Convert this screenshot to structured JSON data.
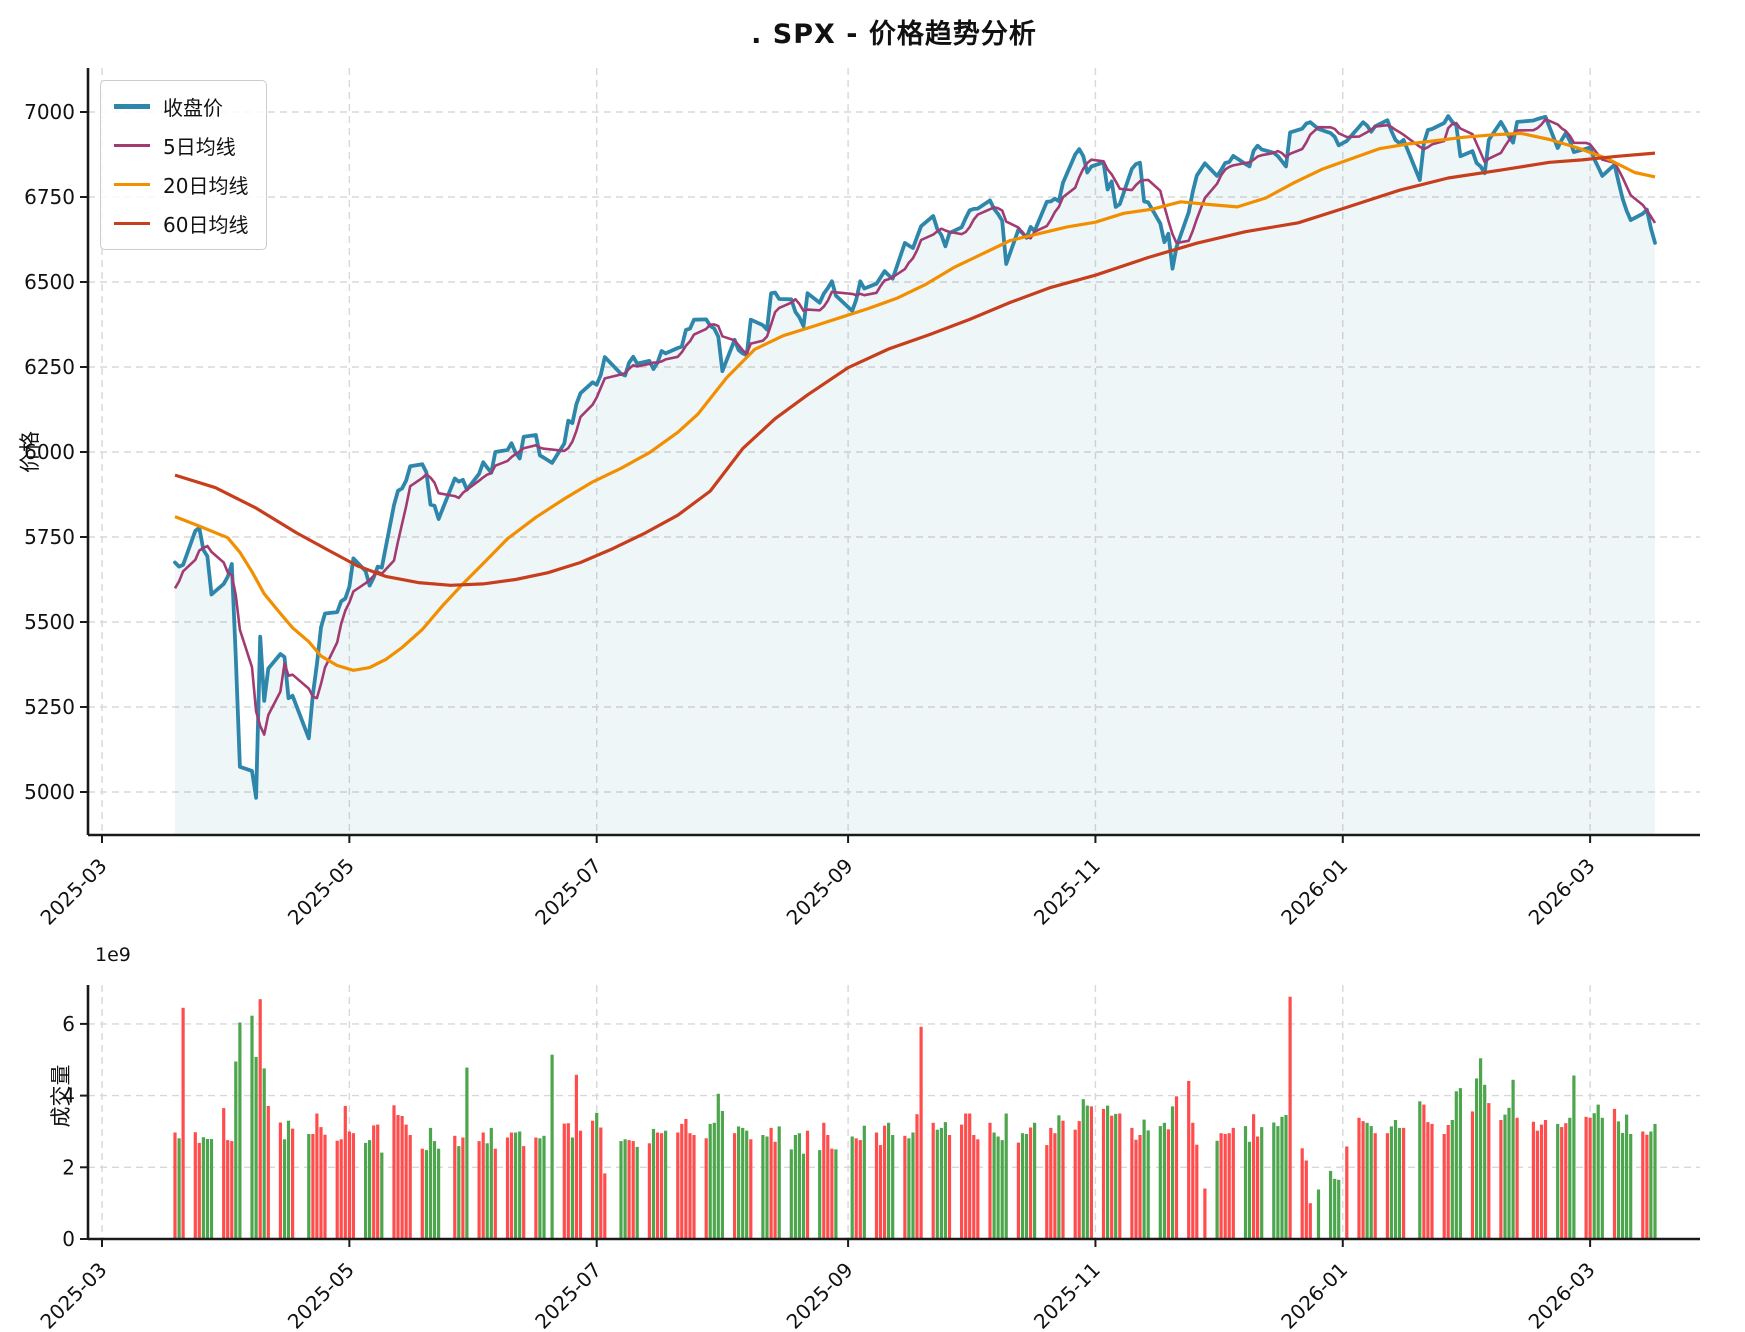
{
  "title": ". SPX - 价格趋势分析",
  "chart_data": [
    {
      "type": "line",
      "panel": "price",
      "title": ". SPX - 价格趋势分析",
      "ylabel": "价格",
      "yticks": [
        5000,
        5250,
        5500,
        5750,
        6000,
        6250,
        6500,
        6750,
        7000
      ],
      "ylim": [
        4874,
        7129
      ],
      "xticks": [
        {
          "label": "2025-03",
          "t": -18
        },
        {
          "label": "2025-05",
          "t": 43
        },
        {
          "label": "2025-07",
          "t": 104
        },
        {
          "label": "2025-09",
          "t": 166
        },
        {
          "label": "2025-11",
          "t": 227
        },
        {
          "label": "2026-01",
          "t": 288
        },
        {
          "label": "2026-03",
          "t": 349
        }
      ],
      "x_axis_note": "t = calendar days since 2025-03-19; trading days only (weekend/holiday gaps)",
      "grid": true,
      "legend_position": "upper-left",
      "trading_weeks": [
        "234",
        "01234",
        "01234",
        "01234",
        "0123",
        "01234",
        "01234",
        "01234",
        "01234",
        "01234",
        "1234",
        "01234",
        "01234",
        "0124",
        "01234",
        "0123",
        "01234",
        "01234",
        "01234",
        "01234",
        "01234",
        "01234",
        "01234",
        "01234",
        "1234",
        "01234",
        "01234",
        "01234",
        "01234",
        "01234",
        "01234",
        "01234",
        "01234",
        "01234",
        "01234",
        "01234",
        "0124",
        "01234",
        "01234",
        "01234",
        "0124",
        "0124",
        "01234",
        "01234",
        "1234",
        "01234",
        "01234",
        "01234",
        "1234",
        "01234",
        "01234",
        "01234",
        "0123"
      ],
      "series": [
        {
          "name": "收盘价",
          "color": "#2E86AB",
          "line_width": 3.8,
          "fill_below": true,
          "fill_opacity": 0.08,
          "values": [
            5675,
            5663,
            5668,
            5768,
            5777,
            5712,
            5693,
            5581,
            5612,
            5633,
            5671,
            5396,
            5074,
            5062,
            4983,
            5457,
            5268,
            5363,
            5406,
            5397,
            5276,
            5283,
            5158,
            5288,
            5376,
            5484,
            5525,
            5529,
            5561,
            5569,
            5604,
            5687,
            5650,
            5607,
            5631,
            5663,
            5660,
            5844,
            5886,
            5893,
            5916,
            5958,
            5964,
            5940,
            5845,
            5842,
            5803,
            5922,
            5913,
            5918,
            5889,
            5936,
            5970,
            5954,
            5939,
            6000,
            6006,
            6026,
            5998,
            5981,
            6045,
            6050,
            5990,
            5983,
            5968,
            6025,
            6092,
            6085,
            6141,
            6173,
            6205,
            6198,
            6227,
            6279,
            6230,
            6225,
            6263,
            6280,
            6260,
            6268,
            6244,
            6263,
            6297,
            6290,
            6306,
            6310,
            6359,
            6363,
            6389,
            6390,
            6371,
            6363,
            6339,
            6238,
            6330,
            6300,
            6290,
            6285,
            6389,
            6373,
            6360,
            6467,
            6469,
            6450,
            6449,
            6412,
            6396,
            6370,
            6467,
            6439,
            6466,
            6482,
            6502,
            6460,
            6415,
            6448,
            6502,
            6481,
            6495,
            6513,
            6532,
            6520,
            6510,
            6615,
            6607,
            6600,
            6632,
            6664,
            6694,
            6656,
            6638,
            6605,
            6644,
            6661,
            6688,
            6711,
            6715,
            6716,
            6740,
            6715,
            6700,
            6680,
            6553,
            6654,
            6644,
            6630,
            6662,
            6650,
            6736,
            6737,
            6745,
            6738,
            6792,
            6875,
            6891,
            6870,
            6822,
            6840,
            6852,
            6772,
            6796,
            6721,
            6729,
            6833,
            6847,
            6851,
            6737,
            6734,
            6672,
            6617,
            6642,
            6539,
            6603,
            6705,
            6766,
            6813,
            6849,
            6812,
            6829,
            6850,
            6853,
            6871,
            6847,
            6840,
            6886,
            6901,
            6890,
            6880,
            6870,
            6855,
            6840,
            6940,
            6951,
            6966,
            6970,
            6950,
            6938,
            6927,
            6902,
            6915,
            6956,
            6970,
            6960,
            6942,
            6958,
            6976,
            6944,
            6918,
            6908,
            6918,
            6800,
            6909,
            6947,
            6950,
            6968,
            6988,
            6971,
            6960,
            6870,
            6885,
            6850,
            6840,
            6820,
            6918,
            6971,
            6950,
            6927,
            6910,
            6971,
            6975,
            6979,
            6983,
            6986,
            6894,
            6918,
            6938,
            6915,
            6882,
            6892,
            6896,
            6862,
            6838,
            6812,
            6845,
            6795,
            6745,
            6710,
            6682,
            6701,
            6713,
            6658,
            6615
          ]
        },
        {
          "name": "5日均线",
          "color": "#A23B72",
          "line_width": 2.6,
          "derived_from": "rolling mean(5) of 收盘价",
          "pre_window_values": [
            5560,
            5521,
            5599,
            5640
          ]
        },
        {
          "name": "20日均线",
          "color": "#F18F01",
          "line_width": 3.2,
          "anchors": [
            [
              0,
              5810
            ],
            [
              6,
              5782
            ],
            [
              13,
              5748
            ],
            [
              16,
              5705
            ],
            [
              19,
              5648
            ],
            [
              22,
              5583
            ],
            [
              26,
              5525
            ],
            [
              29,
              5483
            ],
            [
              33,
              5442
            ],
            [
              36,
              5400
            ],
            [
              40,
              5372
            ],
            [
              44,
              5358
            ],
            [
              48,
              5366
            ],
            [
              52,
              5390
            ],
            [
              56,
              5425
            ],
            [
              61,
              5478
            ],
            [
              66,
              5548
            ],
            [
              71,
              5612
            ],
            [
              76,
              5672
            ],
            [
              82,
              5745
            ],
            [
              89,
              5808
            ],
            [
              96,
              5862
            ],
            [
              103,
              5912
            ],
            [
              110,
              5952
            ],
            [
              117,
              5998
            ],
            [
              124,
              6058
            ],
            [
              129,
              6112
            ],
            [
              136,
              6218
            ],
            [
              143,
              6302
            ],
            [
              150,
              6342
            ],
            [
              157,
              6368
            ],
            [
              164,
              6395
            ],
            [
              171,
              6422
            ],
            [
              178,
              6452
            ],
            [
              185,
              6492
            ],
            [
              192,
              6542
            ],
            [
              199,
              6582
            ],
            [
              206,
              6622
            ],
            [
              213,
              6642
            ],
            [
              220,
              6662
            ],
            [
              227,
              6676
            ],
            [
              234,
              6702
            ],
            [
              241,
              6714
            ],
            [
              248,
              6736
            ],
            [
              255,
              6728
            ],
            [
              262,
              6721
            ],
            [
              269,
              6747
            ],
            [
              276,
              6792
            ],
            [
              283,
              6832
            ],
            [
              290,
              6862
            ],
            [
              297,
              6892
            ],
            [
              304,
              6906
            ],
            [
              311,
              6916
            ],
            [
              318,
              6926
            ],
            [
              325,
              6933
            ],
            [
              332,
              6937
            ],
            [
              339,
              6919
            ],
            [
              346,
              6894
            ],
            [
              353,
              6864
            ],
            [
              360,
              6822
            ],
            [
              365,
              6809
            ]
          ]
        },
        {
          "name": "60日均线",
          "color": "#C73E1D",
          "line_width": 3.2,
          "anchors": [
            [
              0,
              5932
            ],
            [
              10,
              5895
            ],
            [
              20,
              5835
            ],
            [
              30,
              5762
            ],
            [
              38,
              5710
            ],
            [
              45,
              5665
            ],
            [
              52,
              5634
            ],
            [
              60,
              5616
            ],
            [
              68,
              5608
            ],
            [
              76,
              5612
            ],
            [
              84,
              5625
            ],
            [
              92,
              5645
            ],
            [
              100,
              5675
            ],
            [
              108,
              5716
            ],
            [
              116,
              5762
            ],
            [
              124,
              5814
            ],
            [
              132,
              5885
            ],
            [
              140,
              6010
            ],
            [
              148,
              6098
            ],
            [
              156,
              6168
            ],
            [
              166,
              6248
            ],
            [
              176,
              6303
            ],
            [
              186,
              6345
            ],
            [
              196,
              6390
            ],
            [
              206,
              6440
            ],
            [
              216,
              6484
            ],
            [
              227,
              6520
            ],
            [
              240,
              6572
            ],
            [
              252,
              6614
            ],
            [
              264,
              6648
            ],
            [
              277,
              6674
            ],
            [
              288,
              6716
            ],
            [
              302,
              6770
            ],
            [
              314,
              6806
            ],
            [
              327,
              6829
            ],
            [
              339,
              6852
            ],
            [
              347,
              6859
            ],
            [
              356,
              6870
            ],
            [
              365,
              6879
            ]
          ]
        }
      ]
    },
    {
      "type": "bar",
      "panel": "volume",
      "ylabel": "成交量",
      "offset_text": "1e9",
      "yticks": [
        0,
        2,
        4,
        6
      ],
      "ylim": [
        0,
        7.08
      ],
      "unit": 1000000000,
      "up_color": "#ff4d4d",
      "down_color": "#4da64d",
      "color_rule": "red if close >= previous close else green",
      "values": [
        2.97,
        2.81,
        6.45,
        2.98,
        2.68,
        2.84,
        2.79,
        2.79,
        3.65,
        2.76,
        2.73,
        4.95,
        6.04,
        6.23,
        5.08,
        6.69,
        4.76,
        3.71,
        3.25,
        2.78,
        3.3,
        3.08,
        2.93,
        2.93,
        3.5,
        3.12,
        2.91,
        2.74,
        2.78,
        3.71,
        3.0,
        2.95,
        2.68,
        2.76,
        3.17,
        3.19,
        2.41,
        3.73,
        3.46,
        3.43,
        3.19,
        2.9,
        2.52,
        2.48,
        3.1,
        2.73,
        2.52,
        2.88,
        2.59,
        2.83,
        4.78,
        2.73,
        2.97,
        2.67,
        3.1,
        2.52,
        2.83,
        2.97,
        2.97,
        3.0,
        2.59,
        2.83,
        2.81,
        2.88,
        5.14,
        3.22,
        3.23,
        2.83,
        4.58,
        3.02,
        3.3,
        3.52,
        3.11,
        1.83,
        2.73,
        2.78,
        2.76,
        2.73,
        2.57,
        2.67,
        3.07,
        2.97,
        2.95,
        3.02,
        2.97,
        3.21,
        3.35,
        2.95,
        2.9,
        2.81,
        3.21,
        3.24,
        4.05,
        3.57,
        2.95,
        3.14,
        3.1,
        3.02,
        2.78,
        2.9,
        2.86,
        3.1,
        2.71,
        3.14,
        2.5,
        2.9,
        2.95,
        2.38,
        3.02,
        2.48,
        3.24,
        2.9,
        2.52,
        2.5,
        2.86,
        2.81,
        2.76,
        3.16,
        2.97,
        2.62,
        3.16,
        3.24,
        2.9,
        2.88,
        2.81,
        2.97,
        3.48,
        5.92,
        3.24,
        3.05,
        3.1,
        3.26,
        2.9,
        3.19,
        3.5,
        3.5,
        2.9,
        2.78,
        3.24,
        2.97,
        2.86,
        2.76,
        3.5,
        2.69,
        2.95,
        2.93,
        3.11,
        3.24,
        2.62,
        3.1,
        2.95,
        3.45,
        3.3,
        3.05,
        3.29,
        3.9,
        3.72,
        3.7,
        3.63,
        3.72,
        3.44,
        3.49,
        3.5,
        3.1,
        2.77,
        2.9,
        3.33,
        3.03,
        3.15,
        3.24,
        3.06,
        3.7,
        3.98,
        4.41,
        3.24,
        2.63,
        1.41,
        2.74,
        2.95,
        2.93,
        2.95,
        3.1,
        3.15,
        2.71,
        3.48,
        2.86,
        3.12,
        3.25,
        3.15,
        3.41,
        3.46,
        6.76,
        2.53,
        2.19,
        1.0,
        1.38,
        1.9,
        1.68,
        1.65,
        2.58,
        3.38,
        3.29,
        3.24,
        3.15,
        2.95,
        2.95,
        3.14,
        3.32,
        3.1,
        3.1,
        3.84,
        3.75,
        3.26,
        3.21,
        2.93,
        3.18,
        3.32,
        4.12,
        4.21,
        3.56,
        4.48,
        5.04,
        4.3,
        3.79,
        3.32,
        3.47,
        3.66,
        4.44,
        3.38,
        3.27,
        3.02,
        3.19,
        3.32,
        3.21,
        3.12,
        3.23,
        3.38,
        4.56,
        3.41,
        3.38,
        3.51,
        3.75,
        3.38,
        3.63,
        3.28,
        2.96,
        3.47,
        2.93,
        3.0,
        2.91,
        3.0,
        3.21
      ]
    }
  ]
}
